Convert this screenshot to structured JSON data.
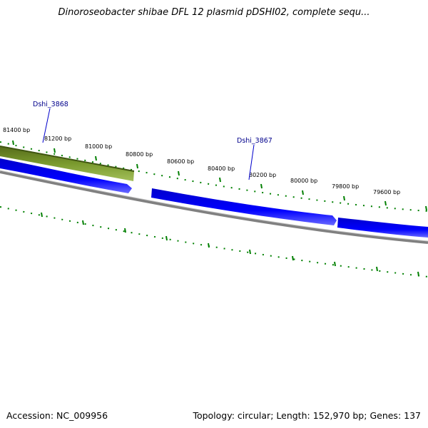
{
  "title": "Dinoroseobacter shibae DFL 12 plasmid pDSHI02, complete sequ...",
  "footer": {
    "accession_label": "Accession:",
    "accession": "NC_009956",
    "topology_label": "Topology:",
    "topology": "circular",
    "length_label": "Length:",
    "length": "152,970 bp",
    "genes_label": "Genes:",
    "genes": "137"
  },
  "ticks": [
    "81400 bp",
    "81200 bp",
    "81000 bp",
    "80800 bp",
    "80600 bp",
    "80400 bp",
    "80200 bp",
    "80000 bp",
    "79800 bp",
    "79600 bp"
  ],
  "genes": [
    {
      "label": "Dshi_3868"
    },
    {
      "label": "Dshi_3867"
    }
  ],
  "colors": {
    "forward_gene": "#6b8e23",
    "reverse_gene": "#0000ff",
    "backbone": "#808080",
    "ticks": "#008000",
    "gene_label": "#00008b"
  }
}
